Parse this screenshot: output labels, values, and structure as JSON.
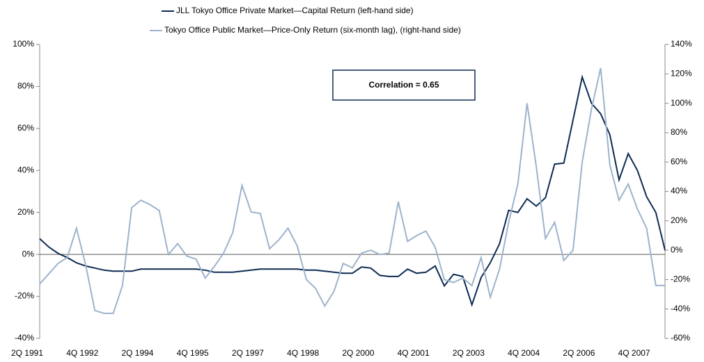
{
  "chart_data": {
    "type": "line",
    "annotation": "Correlation = 0.65",
    "categories": [
      "2Q 1991",
      null,
      null,
      null,
      null,
      null,
      "4Q 1992",
      null,
      null,
      null,
      null,
      null,
      "2Q 1994",
      null,
      null,
      null,
      null,
      null,
      "4Q 1995",
      null,
      null,
      null,
      null,
      null,
      "2Q 1997",
      null,
      null,
      null,
      null,
      null,
      "4Q 1998",
      null,
      null,
      null,
      null,
      null,
      "2Q 2000",
      null,
      null,
      null,
      null,
      null,
      "4Q 2001",
      null,
      null,
      null,
      null,
      null,
      "2Q 2003",
      null,
      null,
      null,
      null,
      null,
      "4Q 2004",
      null,
      null,
      null,
      null,
      null,
      "2Q 2006",
      null,
      null,
      null,
      null,
      null,
      "4Q 2007",
      null,
      null
    ],
    "series": [
      {
        "name": "JLL Tokyo Office Private Market—Capital Return (left-hand side)",
        "color": "#0d2b52",
        "values": [
          7.5,
          3.5,
          0.5,
          -1.5,
          -4,
          -5.5,
          -6.5,
          -7.5,
          -8,
          -8,
          -8,
          -7,
          -7,
          -7,
          -7,
          -7,
          -7,
          -7,
          -7.5,
          -8.5,
          -8.5,
          -8.5,
          -8,
          -7.5,
          -7,
          -7,
          -7,
          -7,
          -7,
          -7.5,
          -7.5,
          -8,
          -8.5,
          -9,
          -9,
          -6,
          -6.5,
          -10,
          -10.5,
          -10.5,
          -7,
          -9,
          -8.5,
          -5.5,
          -15,
          -9.5,
          -10.5,
          -24,
          -11,
          -4,
          5,
          21,
          20,
          26.5,
          23,
          27,
          43,
          43.5,
          64,
          84.5,
          72,
          67,
          57,
          35.5,
          48,
          40,
          27.5,
          20,
          2
        ]
      },
      {
        "name": "Tokyo Office Public Market—Price-Only Return (six-month lag), (right-hand side)",
        "color": "#9db3cc",
        "axis": "y2",
        "values": [
          -23,
          -16,
          -9,
          -5,
          15,
          -10,
          -41,
          -43,
          -43,
          -24,
          29,
          34,
          31,
          27,
          -3,
          4.5,
          -4,
          -6,
          -19,
          -11,
          -2,
          12,
          44,
          26,
          25,
          1,
          7,
          15,
          3,
          -20,
          -26,
          -38,
          -28,
          -9,
          -12,
          -2,
          0,
          -3,
          -2,
          33,
          6,
          10,
          13,
          2,
          -20,
          -22,
          -19,
          -24,
          -5,
          -32,
          -13,
          19,
          45,
          100,
          57,
          8,
          19,
          -7,
          0,
          60,
          96,
          124,
          58,
          34,
          45,
          28,
          15,
          -24,
          -24
        ]
      }
    ],
    "ylim": [
      -40,
      100
    ],
    "yticks": [
      {
        "value": -40,
        "label": "-40%"
      },
      {
        "value": -20,
        "label": "-20%"
      },
      {
        "value": 0,
        "label": "0%"
      },
      {
        "value": 20,
        "label": "20%"
      },
      {
        "value": 40,
        "label": "40%"
      },
      {
        "value": 60,
        "label": "60%"
      },
      {
        "value": 80,
        "label": "80%"
      },
      {
        "value": 100,
        "label": "100%"
      }
    ],
    "y2lim": [
      -60,
      140
    ],
    "y2ticks": [
      {
        "value": -60,
        "label": "-60%"
      },
      {
        "value": -40,
        "label": "-40%"
      },
      {
        "value": -20,
        "label": "-20%"
      },
      {
        "value": 0,
        "label": "0%"
      },
      {
        "value": 20,
        "label": "20%"
      },
      {
        "value": 40,
        "label": "40%"
      },
      {
        "value": 60,
        "label": "60%"
      },
      {
        "value": 80,
        "label": "80%"
      },
      {
        "value": 100,
        "label": "100%"
      },
      {
        "value": 120,
        "label": "120%"
      },
      {
        "value": 140,
        "label": "140%"
      }
    ],
    "legend": "top"
  }
}
